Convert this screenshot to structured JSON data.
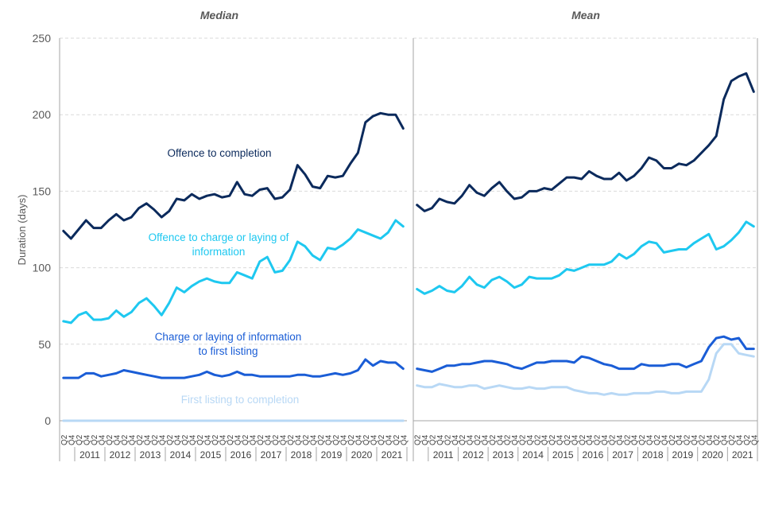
{
  "chart_data": {
    "type": "line",
    "ylabel": "Duration (days)",
    "ylim": [
      0,
      250
    ],
    "yticks": [
      "0",
      "50",
      "100",
      "150",
      "200",
      "250"
    ],
    "quarter_labels": [
      "Q2",
      "Q4"
    ],
    "years": [
      "2011",
      "2012",
      "2013",
      "2014",
      "2015",
      "2016",
      "2017",
      "2018",
      "2019",
      "2020",
      "2021"
    ],
    "quarters_count": 46,
    "panels": [
      {
        "title": "Median",
        "series": [
          {
            "name": "Offence to completion",
            "label": "Offence to completion",
            "color": "#0b2a5c",
            "values": [
              124,
              119,
              125,
              131,
              126,
              126,
              131,
              135,
              131,
              133,
              139,
              142,
              138,
              133,
              137,
              145,
              144,
              148,
              145,
              147,
              148,
              146,
              147,
              156,
              148,
              147,
              151,
              152,
              145,
              146,
              151,
              167,
              161,
              153,
              152,
              160,
              159,
              160,
              168,
              175,
              195,
              199,
              201,
              200,
              200,
              191
            ]
          },
          {
            "name": "Offence to charge or laying of information",
            "label_line1": "Offence to charge or laying of",
            "label_line2": "information",
            "color": "#1ec8f0",
            "values": [
              65,
              64,
              69,
              71,
              66,
              66,
              67,
              72,
              68,
              71,
              77,
              80,
              75,
              69,
              77,
              87,
              84,
              88,
              91,
              93,
              91,
              90,
              90,
              97,
              95,
              93,
              104,
              107,
              97,
              98,
              105,
              117,
              114,
              108,
              105,
              113,
              112,
              115,
              119,
              125,
              123,
              121,
              119,
              123,
              131,
              127
            ]
          },
          {
            "name": "Charge or laying of information to first listing",
            "label_line1": "Charge or laying of information",
            "label_line2": "to first listing",
            "color": "#1a5dd6",
            "values": [
              28,
              28,
              28,
              31,
              31,
              29,
              30,
              31,
              33,
              32,
              31,
              30,
              29,
              28,
              28,
              28,
              28,
              29,
              30,
              32,
              30,
              29,
              30,
              32,
              30,
              30,
              29,
              29,
              29,
              29,
              29,
              30,
              30,
              29,
              29,
              30,
              31,
              30,
              31,
              33,
              40,
              36,
              39,
              38,
              38,
              34
            ]
          },
          {
            "name": "First listing to completion",
            "label": "First listing to completion",
            "color": "#b8d8f5",
            "values": [
              0,
              0,
              0,
              0,
              0,
              0,
              0,
              0,
              0,
              0,
              0,
              0,
              0,
              0,
              0,
              0,
              0,
              0,
              0,
              0,
              0,
              0,
              0,
              0,
              0,
              0,
              0,
              0,
              0,
              0,
              0,
              0,
              0,
              0,
              0,
              0,
              0,
              0,
              0,
              0,
              0,
              0,
              0,
              0,
              0,
              0
            ]
          }
        ]
      },
      {
        "title": "Mean",
        "series": [
          {
            "name": "Offence to completion",
            "color": "#0b2a5c",
            "values": [
              141,
              137,
              139,
              145,
              143,
              142,
              147,
              154,
              149,
              147,
              152,
              156,
              150,
              145,
              146,
              150,
              150,
              152,
              151,
              155,
              159,
              159,
              158,
              163,
              160,
              158,
              158,
              162,
              157,
              160,
              165,
              172,
              170,
              165,
              165,
              168,
              167,
              170,
              175,
              180,
              186,
              210,
              222,
              225,
              227,
              215
            ]
          },
          {
            "name": "Offence to charge or laying of information",
            "color": "#1ec8f0",
            "values": [
              86,
              83,
              85,
              88,
              85,
              84,
              88,
              94,
              89,
              87,
              92,
              94,
              91,
              87,
              89,
              94,
              93,
              93,
              93,
              95,
              99,
              98,
              100,
              102,
              102,
              102,
              104,
              109,
              106,
              109,
              114,
              117,
              116,
              110,
              111,
              112,
              112,
              116,
              119,
              122,
              112,
              114,
              118,
              123,
              130,
              127
            ]
          },
          {
            "name": "Charge or laying of information to first listing",
            "color": "#1a5dd6",
            "values": [
              34,
              33,
              32,
              34,
              36,
              36,
              37,
              37,
              38,
              39,
              39,
              38,
              37,
              35,
              34,
              36,
              38,
              38,
              39,
              39,
              39,
              38,
              42,
              41,
              39,
              37,
              36,
              34,
              34,
              34,
              37,
              36,
              36,
              36,
              37,
              37,
              35,
              37,
              39,
              48,
              54,
              55,
              53,
              54,
              47,
              47
            ]
          },
          {
            "name": "First listing to completion",
            "color": "#b8d8f5",
            "values": [
              23,
              22,
              22,
              24,
              23,
              22,
              22,
              23,
              23,
              21,
              22,
              23,
              22,
              21,
              21,
              22,
              21,
              21,
              22,
              22,
              22,
              20,
              19,
              18,
              18,
              17,
              18,
              17,
              17,
              18,
              18,
              18,
              19,
              19,
              18,
              18,
              19,
              19,
              19,
              27,
              44,
              50,
              50,
              44,
              43,
              42
            ]
          }
        ]
      }
    ]
  }
}
